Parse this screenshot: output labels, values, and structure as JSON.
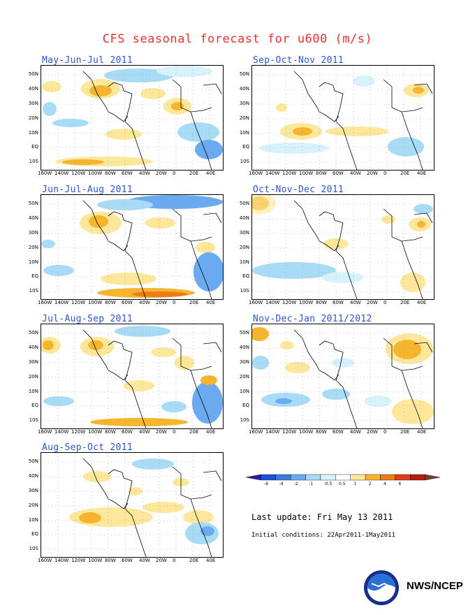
{
  "header": {
    "title": "CFS seasonal forecast for u600 (m/s)"
  },
  "panels": [
    {
      "label": "May-Jun-Jul 2011"
    },
    {
      "label": "Sep-Oct-Nov 2011"
    },
    {
      "label": "Jun-Jul-Aug 2011"
    },
    {
      "label": "Oct-Nov-Dec 2011"
    },
    {
      "label": "Jul-Aug-Sep 2011"
    },
    {
      "label": "Nov-Dec-Jan 2011/2012"
    },
    {
      "label": "Aug-Sep-Oct 2011"
    }
  ],
  "axes": {
    "lat_labels": [
      "50N",
      "40N",
      "30N",
      "20N",
      "10N",
      "EQ",
      "10S"
    ],
    "lon_labels": [
      "160W",
      "140W",
      "120W",
      "100W",
      "80W",
      "60W",
      "40W",
      "20W",
      "0",
      "20E",
      "40E"
    ]
  },
  "colorbar": {
    "levels": [
      "-6",
      "-4",
      "-2",
      "-1",
      "-0.5",
      "0.5",
      "1",
      "2",
      "4",
      "6"
    ],
    "colors": [
      "#2b1aa6",
      "#1f4fd4",
      "#3a7de0",
      "#6aaaf0",
      "#a8dcf6",
      "#d8f2fb",
      "#ffffff",
      "#fde79a",
      "#f7b52e",
      "#ee7a18",
      "#e03a1c",
      "#b81c10",
      "#704030"
    ]
  },
  "footer": {
    "last_update": "Last update: Fri May 13 2011",
    "initial_conditions": "Initial conditions: 22Apr2011-1May2011",
    "org": "NWS/NCEP"
  }
}
